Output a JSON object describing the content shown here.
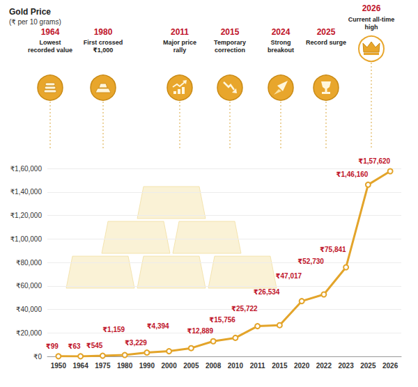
{
  "chart_data": {
    "type": "line",
    "title": "Gold Price",
    "subtitle": "(₹ per 10 grams)",
    "categories": [
      "1950",
      "1964",
      "1975",
      "1980",
      "1990",
      "2000",
      "2005",
      "2008",
      "2010",
      "2011",
      "2015",
      "2020",
      "2022",
      "2023",
      "2025",
      "2026"
    ],
    "values": [
      99,
      63,
      545,
      1159,
      3229,
      4394,
      7000,
      12889,
      15756,
      25722,
      26534,
      47017,
      52730,
      75841,
      146160,
      157620
    ],
    "value_labels": [
      "₹99",
      "₹63",
      "₹545",
      "₹1,159",
      "₹3,229",
      "₹4,394",
      null,
      "₹12,889",
      "₹15,756",
      "₹25,722",
      "₹26,534",
      "₹47,017",
      "₹52,730",
      "₹75,841",
      "₹1,46,160",
      "₹1,57,620"
    ],
    "data_labels": true,
    "color": "#e3a42a",
    "marker": "circle",
    "ylim": [
      0,
      160000
    ],
    "yticks": [
      {
        "value": 0,
        "label": "₹0"
      },
      {
        "value": 20000,
        "label": "₹20,000"
      },
      {
        "value": 40000,
        "label": "₹40,000"
      },
      {
        "value": 60000,
        "label": "₹60,000"
      },
      {
        "value": 80000,
        "label": "₹80,000"
      },
      {
        "value": 100000,
        "label": "₹1,00,000"
      },
      {
        "value": 120000,
        "label": "₹1,20,000"
      },
      {
        "value": 140000,
        "label": "₹1,40,000"
      },
      {
        "value": 160000,
        "label": "₹1,60,000"
      }
    ],
    "grid": true,
    "annotations": [
      {
        "year": "1964",
        "text": "Lowest recorded value"
      },
      {
        "year": "1980",
        "text": "First crossed ₹1,000"
      },
      {
        "year": "2011",
        "text": "Major price rally"
      },
      {
        "year": "2015",
        "text": "Temporary correction"
      },
      {
        "year": "2024",
        "text": "Strong breakout"
      },
      {
        "year": "2025",
        "text": "Record surge"
      },
      {
        "year": "2026",
        "text": "Current all-time high"
      }
    ]
  }
}
